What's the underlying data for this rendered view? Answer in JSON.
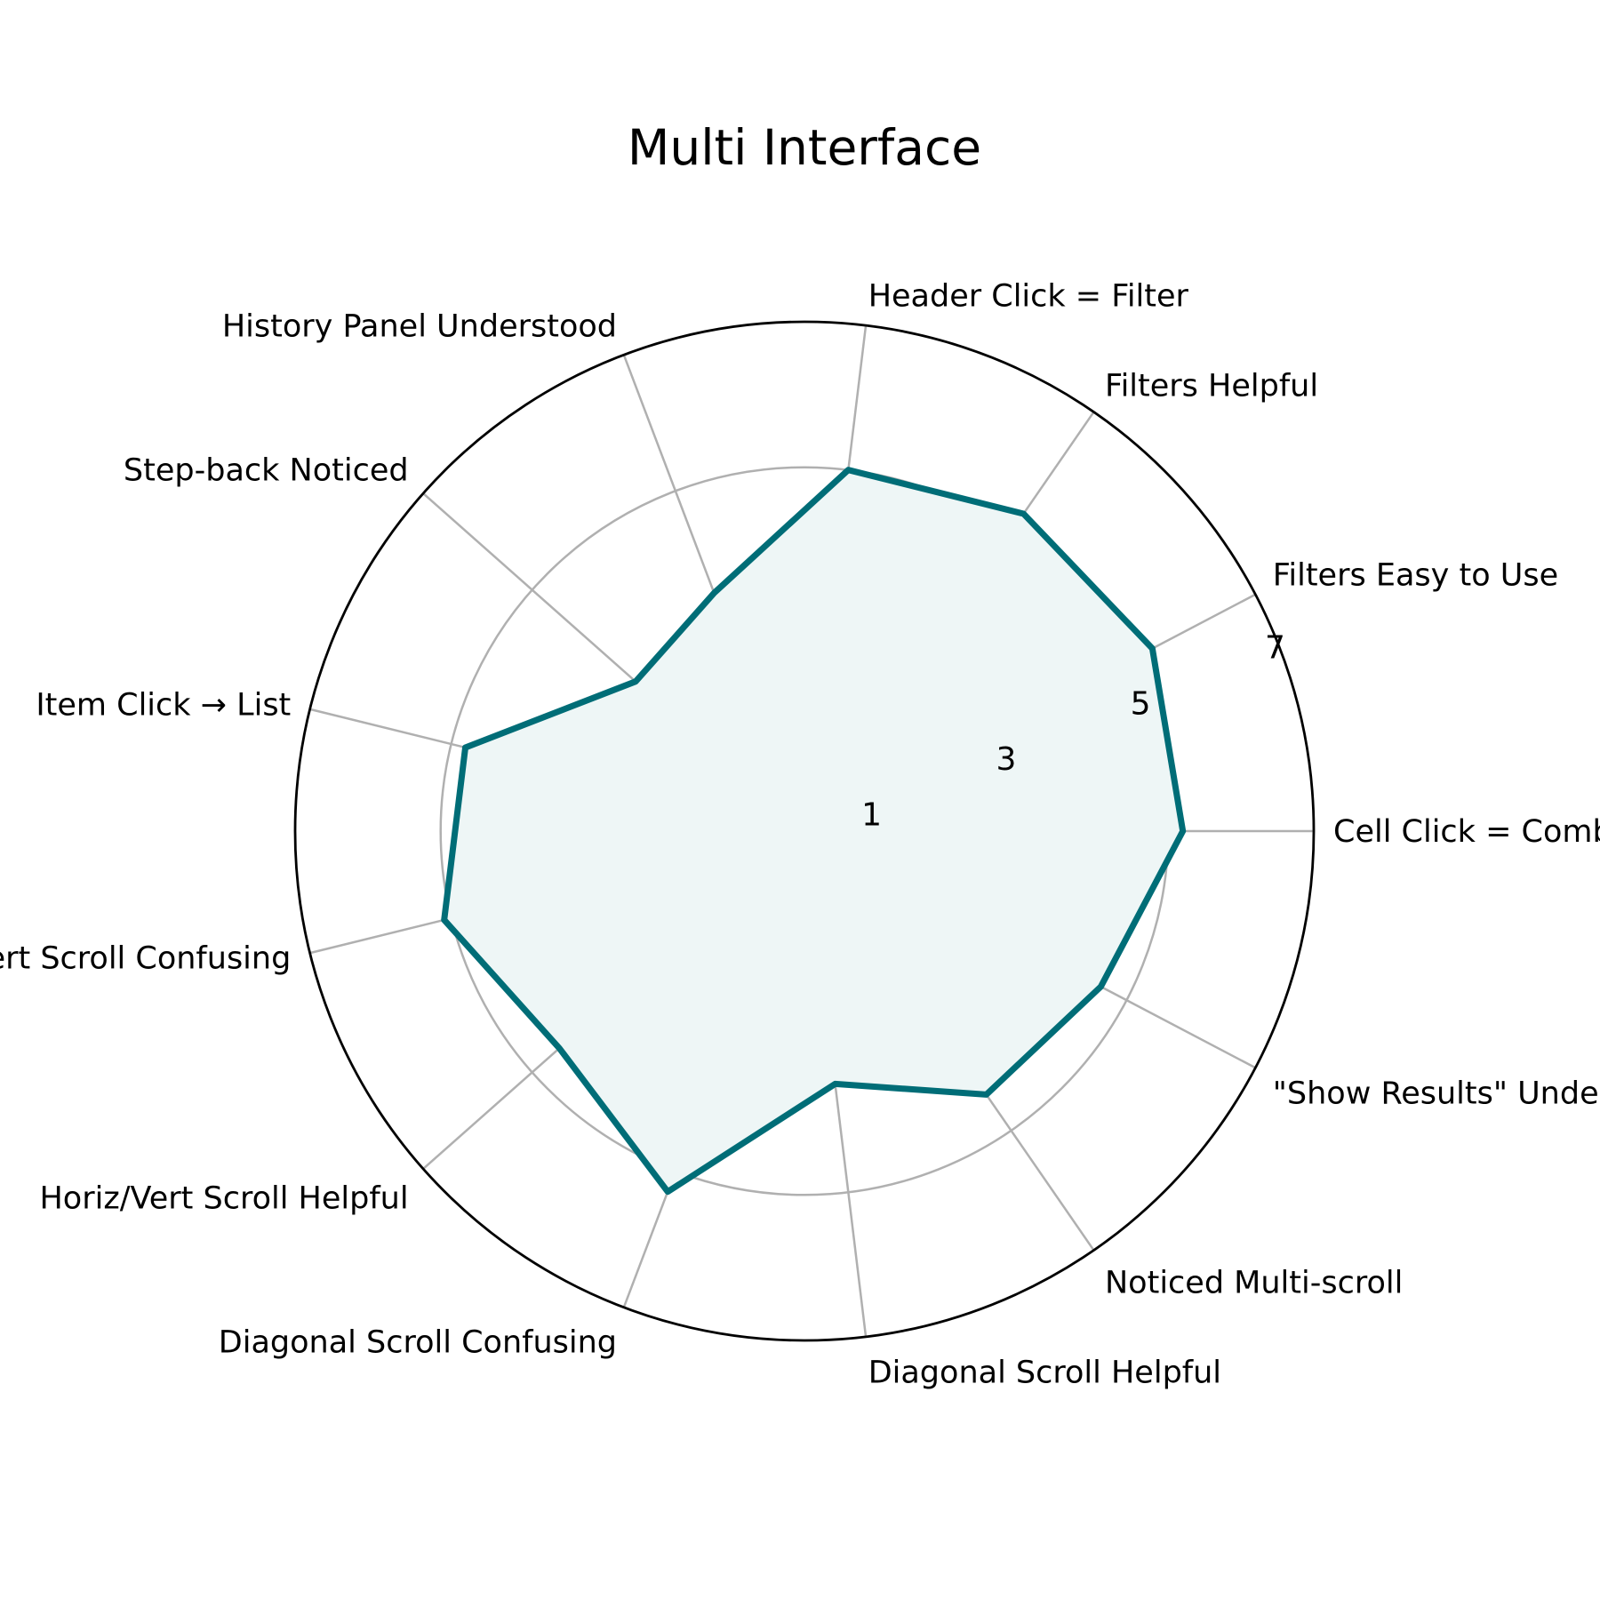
{
  "chart_data": {
    "type": "radar",
    "title": "Multi Interface",
    "rlim": [
      0,
      7
    ],
    "r_ticks": [
      "1",
      "3",
      "5",
      "7"
    ],
    "grid": true,
    "colors": {
      "series": "#006d77",
      "fill": "#eef6f6",
      "grid": "#b0b0b0",
      "spine": "#000000"
    },
    "categories": [
      "Cell Click = Combo Filter",
      "Filters Easy to Use",
      "Filters Helpful",
      "Header Click = Filter",
      "History Panel Understood",
      "Step-back Noticed",
      "Item Click → List",
      "Horiz/Vert Scroll Confusing",
      "Horiz/Vert Scroll Helpful",
      "Diagonal Scroll Confusing",
      "Diagonal Scroll Helpful",
      "Noticed Multi-scroll",
      "\"Show Results\" Understood"
    ],
    "series": [
      {
        "values": [
          5.2,
          5.4,
          5.3,
          5.0,
          3.5,
          3.1,
          4.8,
          5.1,
          4.5,
          5.3,
          3.5,
          4.4,
          4.6
        ]
      }
    ]
  }
}
